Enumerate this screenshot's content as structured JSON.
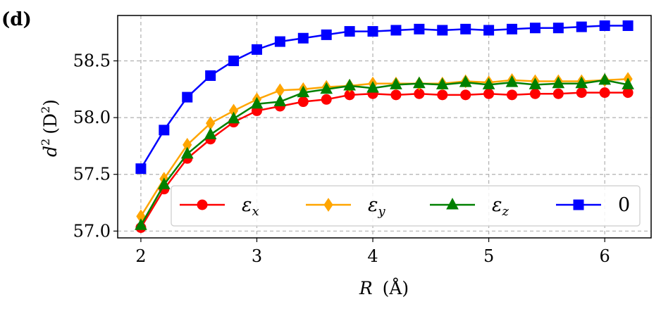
{
  "panel_label": "(d)",
  "chart_data": {
    "type": "line",
    "xlabel_var": "R",
    "xlabel_unit": "(Å)",
    "ylabel_var": "d",
    "ylabel_sup": "2",
    "ylabel_unit_pre": "(D",
    "ylabel_unit_sup": "2",
    "ylabel_unit_post": ")",
    "xlim": [
      1.8,
      6.4
    ],
    "ylim": [
      56.94,
      58.9
    ],
    "xticks": [
      2,
      3,
      4,
      5,
      6
    ],
    "xtick_labels": [
      "2",
      "3",
      "4",
      "5",
      "6"
    ],
    "yticks": [
      57.0,
      57.5,
      58.0,
      58.5
    ],
    "ytick_labels": [
      "57.0",
      "57.5",
      "58.0",
      "58.5"
    ],
    "grid": true,
    "legend_placement": "lower-right",
    "x": [
      2.0,
      2.2,
      2.4,
      2.6,
      2.8,
      3.0,
      3.2,
      3.4,
      3.6,
      3.8,
      4.0,
      4.2,
      4.4,
      4.6,
      4.8,
      5.0,
      5.2,
      5.4,
      5.6,
      5.8,
      6.0,
      6.2
    ],
    "series": [
      {
        "name_base": "ε",
        "name_sub": "x",
        "color": "#ff0000",
        "marker": "circle",
        "values": [
          57.03,
          57.37,
          57.64,
          57.81,
          57.96,
          58.06,
          58.1,
          58.14,
          58.16,
          58.2,
          58.21,
          58.2,
          58.21,
          58.2,
          58.2,
          58.21,
          58.2,
          58.21,
          58.21,
          58.22,
          58.22,
          58.22
        ]
      },
      {
        "name_base": "ε",
        "name_sub": "y",
        "color": "#ffa500",
        "marker": "diamond",
        "values": [
          57.13,
          57.46,
          57.76,
          57.95,
          58.06,
          58.16,
          58.24,
          58.25,
          58.27,
          58.28,
          58.3,
          58.3,
          58.3,
          58.3,
          58.32,
          58.31,
          58.33,
          58.32,
          58.32,
          58.32,
          58.33,
          58.34
        ]
      },
      {
        "name_base": "ε",
        "name_sub": "z",
        "color": "#008000",
        "marker": "triangle",
        "values": [
          57.05,
          57.41,
          57.68,
          57.85,
          57.99,
          58.12,
          58.14,
          58.22,
          58.25,
          58.28,
          58.26,
          58.29,
          58.3,
          58.29,
          58.31,
          58.29,
          58.31,
          58.29,
          58.3,
          58.3,
          58.33,
          58.29
        ]
      },
      {
        "name_base": "0",
        "name_sub": "",
        "color": "#0000ff",
        "marker": "square",
        "values": [
          57.55,
          57.89,
          58.18,
          58.37,
          58.5,
          58.6,
          58.67,
          58.7,
          58.73,
          58.76,
          58.76,
          58.77,
          58.78,
          58.77,
          58.78,
          58.77,
          58.78,
          58.79,
          58.79,
          58.8,
          58.81,
          58.81
        ]
      }
    ]
  }
}
